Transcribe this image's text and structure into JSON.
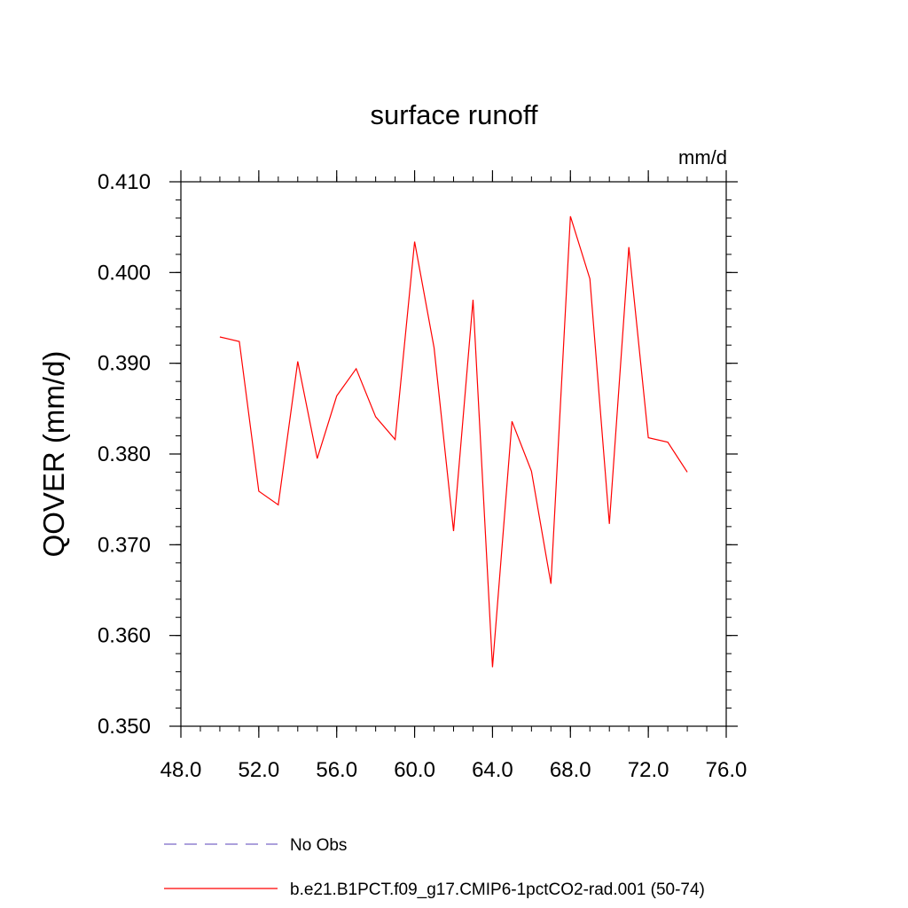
{
  "chart_data": {
    "type": "line",
    "title": "surface runoff",
    "units_label": "mm/d",
    "ylabel": "QOVER  (mm/d)",
    "xlabel": "",
    "xlim": [
      48.0,
      76.0
    ],
    "ylim": [
      0.35,
      0.41
    ],
    "x_ticks": [
      "48.0",
      "52.0",
      "56.0",
      "60.0",
      "64.0",
      "68.0",
      "72.0",
      "76.0"
    ],
    "y_ticks": [
      "0.350",
      "0.360",
      "0.370",
      "0.380",
      "0.390",
      "0.400",
      "0.410"
    ],
    "grid": false,
    "legend_position": "bottom",
    "series": [
      {
        "name": "No Obs",
        "color": "#7b68c8",
        "dash": "dashed",
        "x": [],
        "y": []
      },
      {
        "name": "b.e21.B1PCT.f09_g17.CMIP6-1pctCO2-rad.001 (50-74)",
        "color": "#ff0000",
        "dash": "solid",
        "x": [
          50,
          51,
          52,
          53,
          54,
          55,
          56,
          57,
          58,
          59,
          60,
          61,
          62,
          63,
          64,
          65,
          66,
          67,
          68,
          69,
          70,
          71,
          72,
          73,
          74
        ],
        "y": [
          0.3929,
          0.3924,
          0.3759,
          0.3744,
          0.3902,
          0.3795,
          0.3864,
          0.3894,
          0.3841,
          0.3816,
          0.4034,
          0.3917,
          0.3715,
          0.397,
          0.3565,
          0.3836,
          0.3781,
          0.3657,
          0.4062,
          0.3993,
          0.3723,
          0.4028,
          0.3818,
          0.3813,
          0.378
        ]
      }
    ]
  }
}
